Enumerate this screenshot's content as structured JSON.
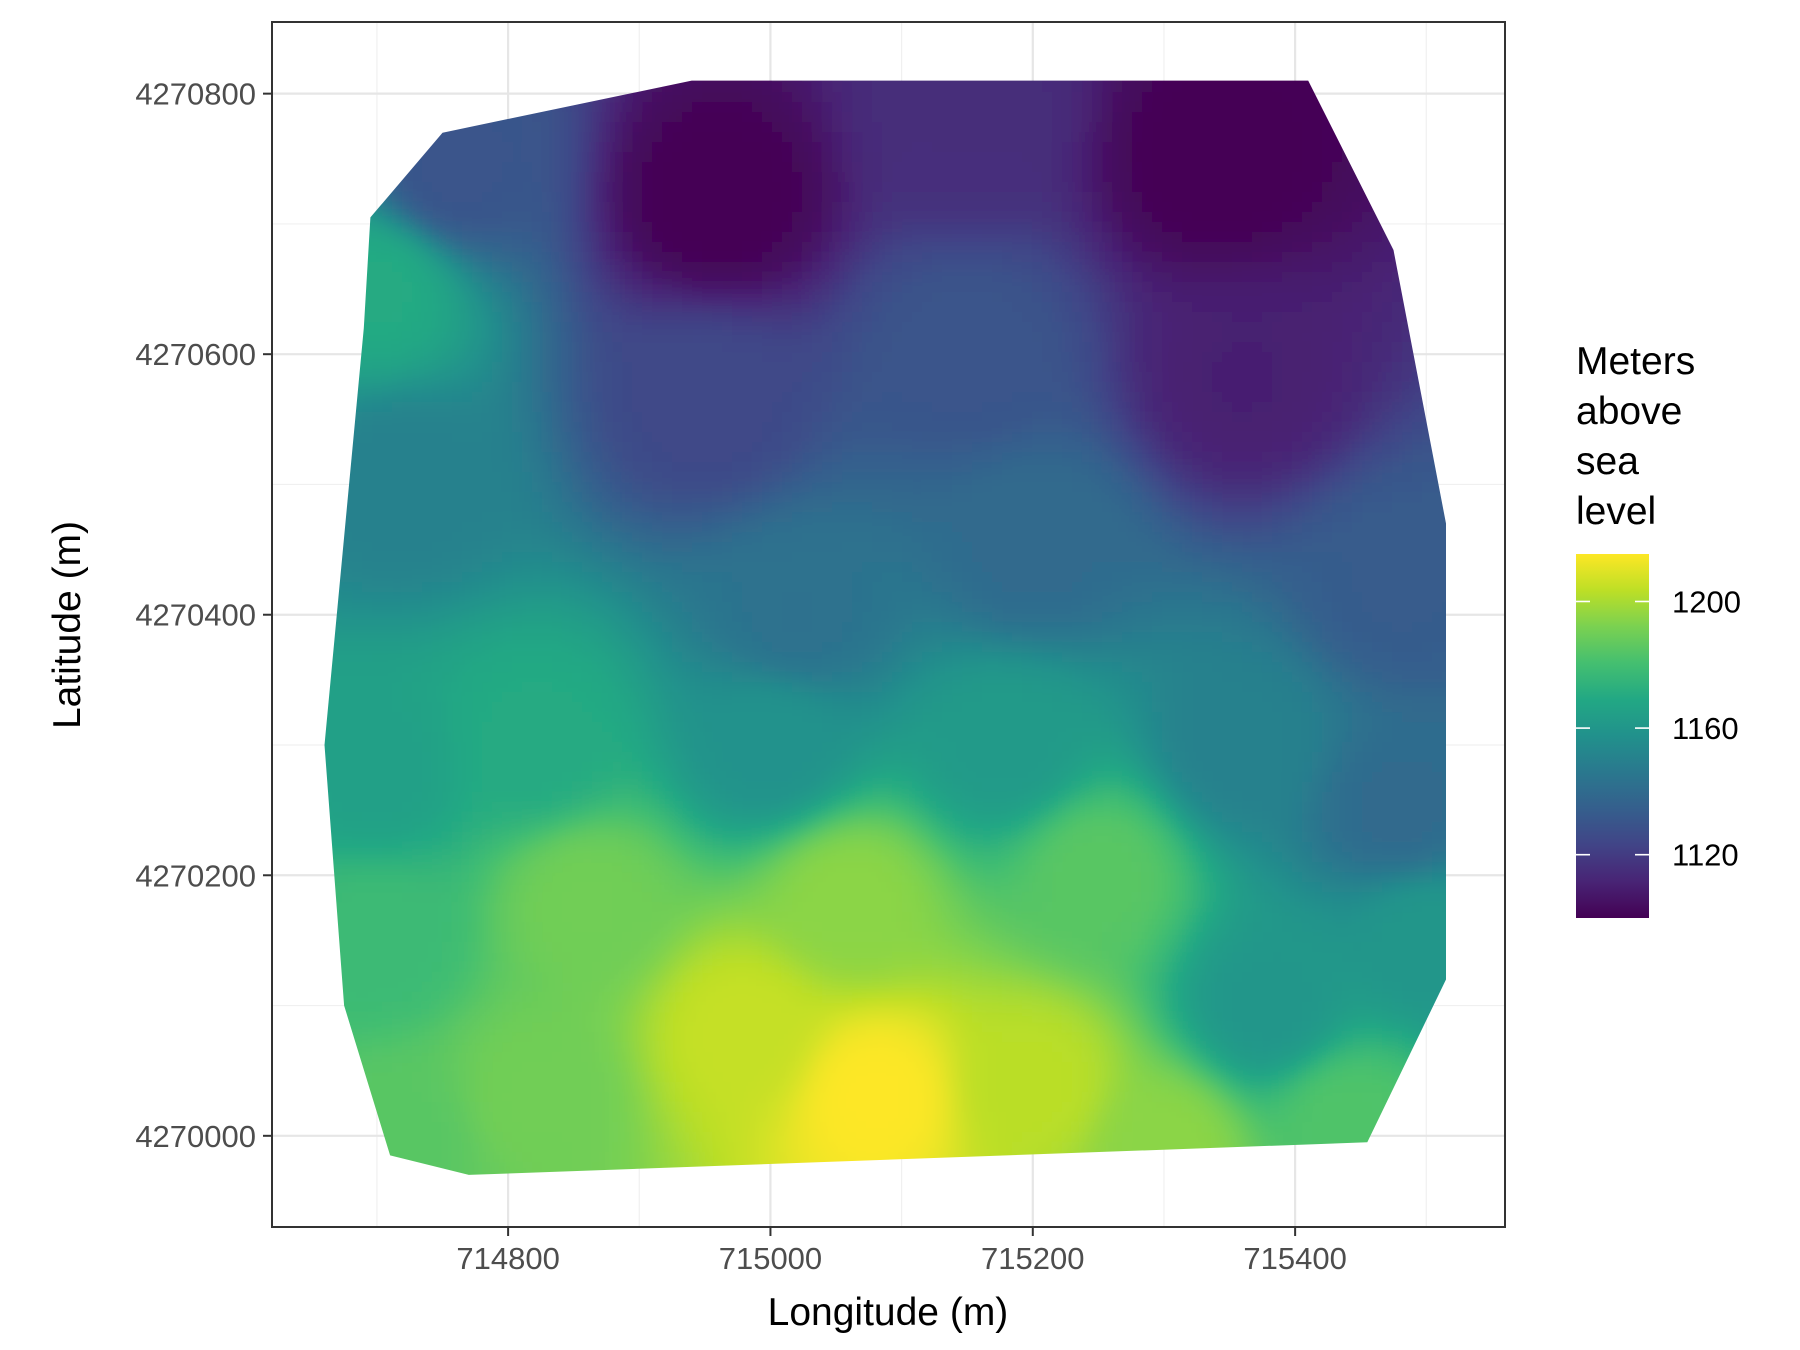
{
  "chart_data": {
    "type": "heatmap",
    "title": "",
    "xlabel": "Longitude (m)",
    "ylabel": "Latitude (m)",
    "x_ticks": [
      "714800",
      "715000",
      "715200",
      "715400"
    ],
    "y_ticks": [
      "4270000",
      "4270200",
      "4270400",
      "4270600",
      "4270800"
    ],
    "xlim": [
      714620,
      715560
    ],
    "ylim": [
      4269930,
      4270855
    ],
    "grid": true,
    "colorscale": "viridis",
    "legend": {
      "title": [
        "Meters",
        "above",
        "sea",
        "level"
      ],
      "placement": "right",
      "ticks": [
        "1200",
        "1160",
        "1120"
      ],
      "range": [
        1100,
        1215
      ]
    },
    "boundary": [
      [
        714695,
        4270705
      ],
      [
        714750,
        4270770
      ],
      [
        714940,
        4270810
      ],
      [
        715410,
        4270810
      ],
      [
        715475,
        4270680
      ],
      [
        715515,
        4270470
      ],
      [
        715515,
        4270120
      ],
      [
        715455,
        4269995
      ],
      [
        714770,
        4269970
      ],
      [
        714710,
        4269985
      ],
      [
        714675,
        4270100
      ],
      [
        714660,
        4270300
      ],
      [
        714690,
        4270620
      ]
    ],
    "elevation_field": [
      {
        "x": 714960,
        "y": 4270720,
        "value": 1100
      },
      {
        "x": 715340,
        "y": 4270750,
        "value": 1100
      },
      {
        "x": 715150,
        "y": 4270780,
        "value": 1115
      },
      {
        "x": 715360,
        "y": 4270580,
        "value": 1110
      },
      {
        "x": 714950,
        "y": 4270560,
        "value": 1125
      },
      {
        "x": 714760,
        "y": 4270740,
        "value": 1130
      },
      {
        "x": 715150,
        "y": 4270600,
        "value": 1130
      },
      {
        "x": 714700,
        "y": 4270650,
        "value": 1170
      },
      {
        "x": 714720,
        "y": 4270500,
        "value": 1150
      },
      {
        "x": 715020,
        "y": 4270400,
        "value": 1143
      },
      {
        "x": 715200,
        "y": 4270450,
        "value": 1140
      },
      {
        "x": 715480,
        "y": 4270420,
        "value": 1133
      },
      {
        "x": 715480,
        "y": 4270250,
        "value": 1140
      },
      {
        "x": 714700,
        "y": 4270280,
        "value": 1165
      },
      {
        "x": 714820,
        "y": 4270300,
        "value": 1170
      },
      {
        "x": 715000,
        "y": 4270300,
        "value": 1158
      },
      {
        "x": 715180,
        "y": 4270300,
        "value": 1162
      },
      {
        "x": 715360,
        "y": 4270300,
        "value": 1150
      },
      {
        "x": 714700,
        "y": 4270150,
        "value": 1178
      },
      {
        "x": 714860,
        "y": 4270180,
        "value": 1190
      },
      {
        "x": 715060,
        "y": 4270180,
        "value": 1195
      },
      {
        "x": 715250,
        "y": 4270200,
        "value": 1185
      },
      {
        "x": 715380,
        "y": 4270100,
        "value": 1160
      },
      {
        "x": 715500,
        "y": 4270150,
        "value": 1160
      },
      {
        "x": 714980,
        "y": 4270080,
        "value": 1205
      },
      {
        "x": 715080,
        "y": 4270030,
        "value": 1215
      },
      {
        "x": 715200,
        "y": 4270040,
        "value": 1203
      },
      {
        "x": 714820,
        "y": 4270030,
        "value": 1190
      },
      {
        "x": 715440,
        "y": 4270010,
        "value": 1183
      },
      {
        "x": 715300,
        "y": 4269990,
        "value": 1195
      },
      {
        "x": 714720,
        "y": 4270000,
        "value": 1185
      }
    ]
  }
}
